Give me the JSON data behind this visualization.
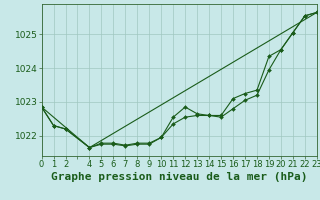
{
  "background_color": "#c8e8e8",
  "plot_bg_color": "#c8e8e8",
  "grid_color": "#a0c8c0",
  "line_color": "#1a5c1a",
  "marker_color": "#1a5c1a",
  "title": "Graphe pression niveau de la mer (hPa)",
  "xlim": [
    0,
    23
  ],
  "ylim": [
    1021.4,
    1025.9
  ],
  "yticks": [
    1022,
    1023,
    1024,
    1025
  ],
  "xtick_labels": [
    "0",
    "1",
    "2",
    "",
    "4",
    "5",
    "6",
    "7",
    "8",
    "9",
    "10",
    "11",
    "12",
    "13",
    "14",
    "15",
    "16",
    "17",
    "18",
    "19",
    "20",
    "21",
    "22",
    "23"
  ],
  "series1_x": [
    0,
    1,
    2,
    4,
    5,
    6,
    7,
    8,
    9,
    10,
    11,
    12,
    13,
    14,
    15,
    16,
    17,
    18,
    19,
    20,
    21,
    22,
    23
  ],
  "series1_y": [
    1022.85,
    1022.3,
    1022.2,
    1021.65,
    1021.75,
    1021.75,
    1021.7,
    1021.75,
    1021.75,
    1021.95,
    1022.35,
    1022.55,
    1022.6,
    1022.6,
    1022.55,
    1022.8,
    1023.05,
    1023.2,
    1023.95,
    1024.55,
    1025.05,
    1025.55,
    1025.65
  ],
  "series2_x": [
    0,
    1,
    2,
    4,
    5,
    6,
    7,
    8,
    9,
    10,
    11,
    12,
    13,
    14,
    15,
    16,
    17,
    18,
    19,
    20,
    21,
    22,
    23
  ],
  "series2_y": [
    1022.85,
    1022.3,
    1022.2,
    1021.65,
    1021.78,
    1021.78,
    1021.72,
    1021.78,
    1021.78,
    1021.95,
    1022.55,
    1022.85,
    1022.65,
    1022.6,
    1022.6,
    1023.1,
    1023.25,
    1023.35,
    1024.35,
    1024.55,
    1025.05,
    1025.55,
    1025.65
  ],
  "series3_x": [
    0,
    4,
    23
  ],
  "series3_y": [
    1022.85,
    1021.65,
    1025.65
  ],
  "title_fontsize": 8,
  "tick_fontsize": 6.5,
  "title_color": "#1a5c1a"
}
